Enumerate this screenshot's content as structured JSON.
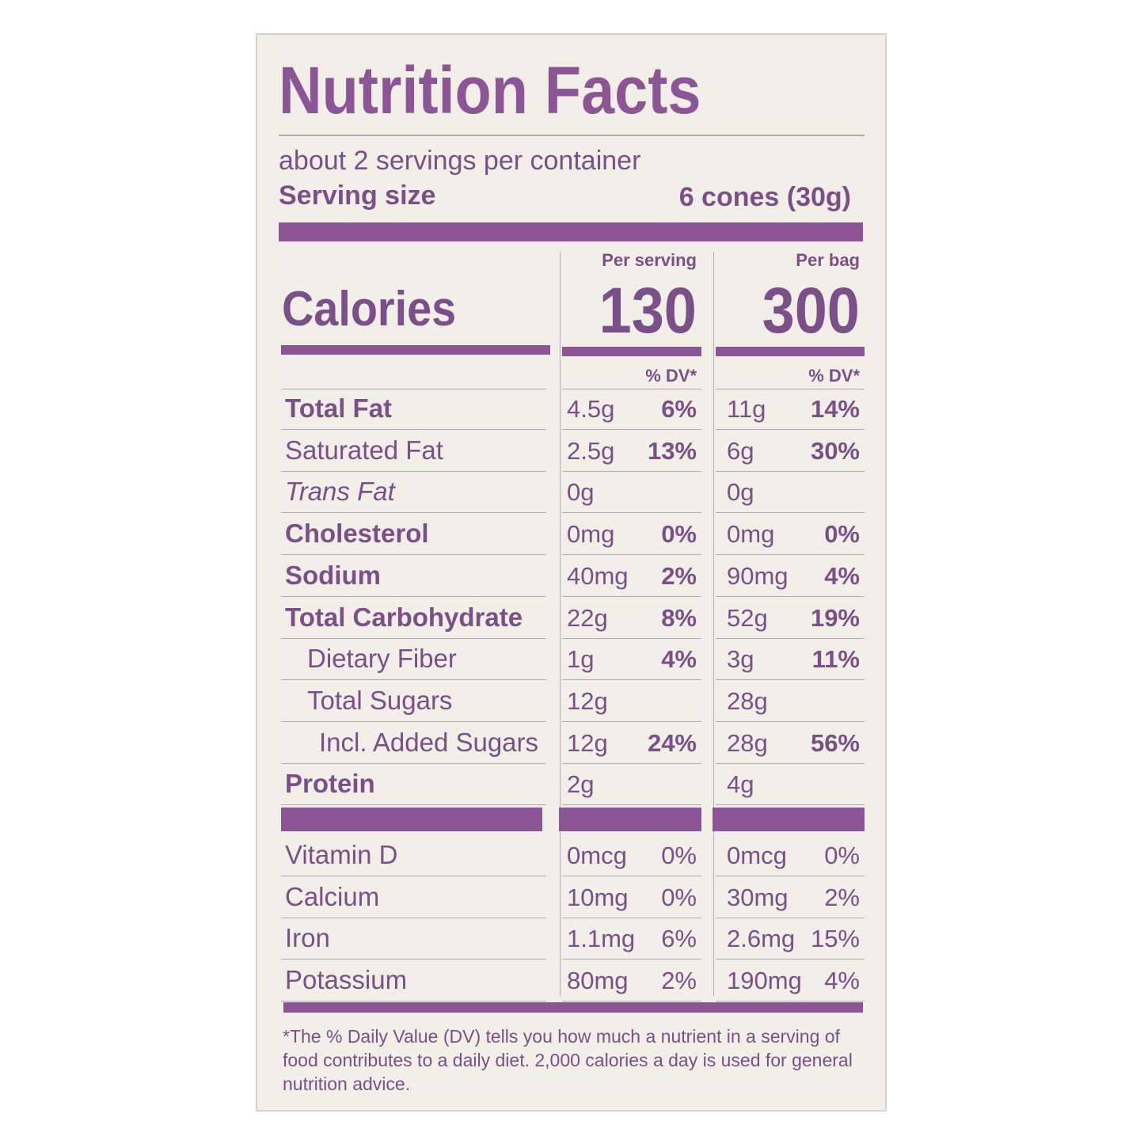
{
  "title": "Nutrition Facts",
  "servings": "about 2 servings per container",
  "serving_size": {
    "label": "Serving size",
    "value": "6 cones (30g)"
  },
  "columns": [
    {
      "heading": "Per serving",
      "calories": "130",
      "dv_header": "% DV*"
    },
    {
      "heading": "Per bag",
      "calories": "300",
      "dv_header": "% DV*"
    }
  ],
  "calories_label": "Calories",
  "nutrients": [
    {
      "label": "Total Fat",
      "values": [
        [
          "4.5g",
          "6%"
        ],
        [
          "11g",
          "14%"
        ]
      ]
    },
    {
      "label": "Saturated Fat",
      "values": [
        [
          "2.5g",
          "13%"
        ],
        [
          "6g",
          "30%"
        ]
      ]
    },
    {
      "label": "Trans Fat",
      "values": [
        [
          "0g",
          null
        ],
        [
          "0g",
          null
        ]
      ]
    },
    {
      "label": "Cholesterol",
      "values": [
        [
          "0mg",
          "0%"
        ],
        [
          "0mg",
          "0%"
        ]
      ]
    },
    {
      "label": "Sodium",
      "values": [
        [
          "40mg",
          "2%"
        ],
        [
          "90mg",
          "4%"
        ]
      ]
    },
    {
      "label": "Total Carbohydrate",
      "values": [
        [
          "22g",
          "8%"
        ],
        [
          "52g",
          "19%"
        ]
      ]
    },
    {
      "label": "Dietary Fiber",
      "values": [
        [
          "1g",
          "4%"
        ],
        [
          "3g",
          "11%"
        ]
      ]
    },
    {
      "label": "Total Sugars",
      "values": [
        [
          "12g",
          null
        ],
        [
          "28g",
          null
        ]
      ]
    },
    {
      "label": "Incl. Added Sugars",
      "values": [
        [
          "12g",
          "24%"
        ],
        [
          "28g",
          "56%"
        ]
      ]
    },
    {
      "label": "Protein",
      "values": [
        [
          "2g",
          null
        ],
        [
          "4g",
          null
        ]
      ]
    }
  ],
  "vitamins": [
    {
      "label": "Vitamin D",
      "values": [
        [
          "0mcg",
          "0%"
        ],
        [
          "0mcg",
          "0%"
        ]
      ]
    },
    {
      "label": "Calcium",
      "values": [
        [
          "10mg",
          "0%"
        ],
        [
          "30mg",
          "2%"
        ]
      ]
    },
    {
      "label": "Iron",
      "values": [
        [
          "1.1mg",
          "6%"
        ],
        [
          "2.6mg",
          "15%"
        ]
      ]
    },
    {
      "label": "Potassium",
      "values": [
        [
          "80mg",
          "2%"
        ],
        [
          "190mg",
          "4%"
        ]
      ]
    }
  ],
  "footnote": "*The % Daily Value (DV) tells you how much a nutrient in a serving of food contributes to a daily diet. 2,000 calories a day is used for general nutrition advice."
}
